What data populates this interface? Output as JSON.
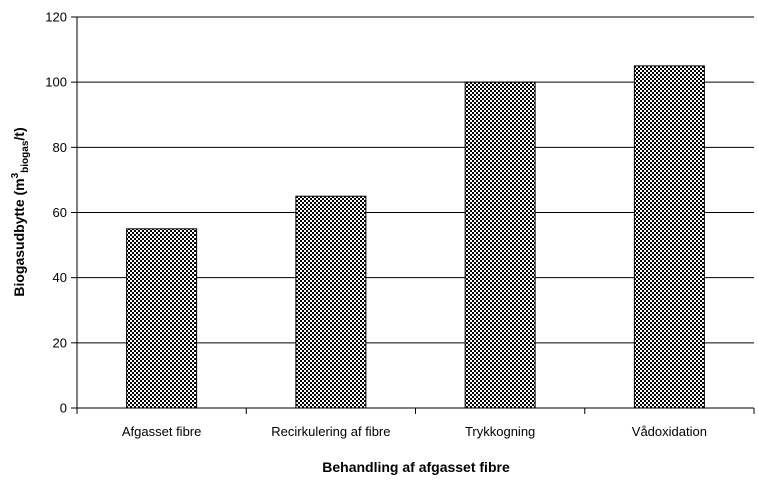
{
  "chart_data": {
    "type": "bar",
    "title": "",
    "xlabel": "Behandling af afgasset fibre",
    "ylabel": {
      "prefix": "Biogasudbytte (m",
      "sup": "3",
      "sub": "biogas",
      "suffix": "/t)"
    },
    "categories": [
      "Afgasset fibre",
      "Recirkulering af fibre",
      "Trykkogning",
      "Vådoxidation"
    ],
    "values": [
      55,
      65,
      100,
      105
    ],
    "ylim": [
      0,
      120
    ],
    "yticks": [
      "0",
      "20",
      "40",
      "60",
      "80",
      "100",
      "120"
    ],
    "grid": "horizontal",
    "legend": "none",
    "bar_pattern": "checkerboard",
    "colors": {
      "pattern_dark": "#000000",
      "pattern_light": "#ffffff",
      "grid": "#000000"
    }
  }
}
